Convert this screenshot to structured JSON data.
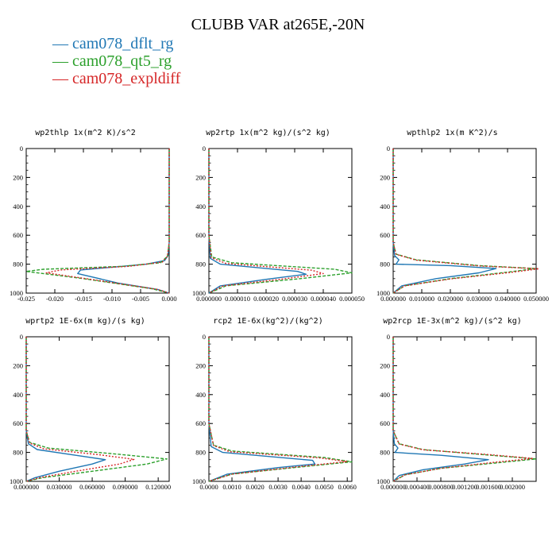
{
  "title": "CLUBB VAR at265E,-20N",
  "legend": [
    {
      "label": "— cam078_dflt_rg",
      "color": "#1f77b4"
    },
    {
      "label": "— cam078_qt5_rg",
      "color": "#2ca02c"
    },
    {
      "label": "— cam078_expldiff",
      "color": "#d62728"
    }
  ],
  "chart_data": [
    {
      "type": "line",
      "title": "wp2thlp  1x(m^2 K)/s^2",
      "xlim": [
        -0.025,
        0.0
      ],
      "ylim": [
        1000,
        0
      ],
      "xticks": [
        -0.025,
        -0.02,
        -0.015,
        -0.01,
        -0.005,
        0.0
      ],
      "xtick_labels": [
        "-0.025",
        "-0.020",
        "-0.015",
        "-0.010",
        "-0.005",
        "0.000"
      ],
      "yticks": [
        0,
        200,
        400,
        600,
        800,
        1000
      ],
      "series": [
        {
          "name": "cam078_dflt_rg",
          "color": "#1f77b4",
          "dash": "",
          "x": [
            0,
            0,
            -0.0002,
            -0.0008,
            -0.004,
            -0.0155,
            -0.016,
            -0.009,
            -0.002,
            0
          ],
          "y": [
            0,
            650,
            740,
            775,
            800,
            840,
            865,
            930,
            975,
            1000
          ]
        },
        {
          "name": "cam078_qt5_rg",
          "color": "#2ca02c",
          "dash": "4 2",
          "x": [
            0,
            0,
            -0.0003,
            -0.0015,
            -0.008,
            -0.022,
            -0.025,
            -0.015,
            -0.003,
            0
          ],
          "y": [
            0,
            650,
            745,
            790,
            815,
            835,
            850,
            900,
            970,
            1000
          ]
        },
        {
          "name": "cam078_expldiff",
          "color": "#d62728",
          "dash": "2 2",
          "x": [
            0,
            0,
            -0.0003,
            -0.0012,
            -0.007,
            -0.019,
            -0.0215,
            -0.012,
            -0.002,
            0
          ],
          "y": [
            0,
            650,
            745,
            785,
            815,
            840,
            860,
            915,
            975,
            1000
          ]
        }
      ]
    },
    {
      "type": "line",
      "title": "wp2rtp  1x(m^2 kg)/(s^2 kg)",
      "xlim": [
        0,
        5e-05
      ],
      "ylim": [
        1000,
        0
      ],
      "xticks": [
        0,
        1e-05,
        2e-05,
        3e-05,
        4e-05,
        5e-05
      ],
      "xtick_labels": [
        "0.000000",
        "0.000010",
        "0.000020",
        "0.000030",
        "0.000040",
        "0.000050"
      ],
      "yticks": [
        0,
        200,
        400,
        600,
        800,
        1000
      ],
      "series": [
        {
          "name": "cam078_dflt_rg",
          "color": "#1f77b4",
          "dash": "",
          "x": [
            0,
            0,
            5e-07,
            4e-06,
            3.1e-05,
            3.4e-05,
            2e-05,
            4e-06,
            0
          ],
          "y": [
            0,
            600,
            760,
            800,
            850,
            870,
            905,
            950,
            1000
          ]
        },
        {
          "name": "cam078_qt5_rg",
          "color": "#2ca02c",
          "dash": "4 2",
          "x": [
            0,
            0,
            1e-06,
            8e-06,
            4.4e-05,
            5e-05,
            3.2e-05,
            6e-06,
            0
          ],
          "y": [
            0,
            600,
            750,
            790,
            835,
            860,
            900,
            950,
            1000
          ]
        },
        {
          "name": "cam078_expldiff",
          "color": "#d62728",
          "dash": "2 2",
          "x": [
            0,
            0,
            8e-07,
            6e-06,
            3.6e-05,
            4e-05,
            2.6e-05,
            5e-06,
            0
          ],
          "y": [
            0,
            600,
            755,
            795,
            842,
            865,
            902,
            950,
            1000
          ]
        }
      ]
    },
    {
      "type": "line",
      "title": "wpthlp2  1x(m K^2)/s",
      "xlim": [
        0,
        0.05
      ],
      "ylim": [
        1000,
        0
      ],
      "xticks": [
        0,
        0.01,
        0.02,
        0.03,
        0.04,
        0.05
      ],
      "xtick_labels": [
        "0.000000",
        "0.010000",
        "0.020000",
        "0.030000",
        "0.040000",
        "0.050000"
      ],
      "yticks": [
        0,
        200,
        400,
        600,
        800,
        1000
      ],
      "series": [
        {
          "name": "cam078_dflt_rg",
          "color": "#1f77b4",
          "dash": "",
          "x": [
            0,
            0,
            0.0005,
            0.002,
            0.001,
            0.02,
            0.036,
            0.03,
            0.015,
            0.003,
            0
          ],
          "y": [
            0,
            650,
            740,
            770,
            800,
            810,
            830,
            860,
            900,
            950,
            1000
          ]
        },
        {
          "name": "cam078_qt5_rg",
          "color": "#2ca02c",
          "dash": "4 2",
          "x": [
            0,
            0,
            0.001,
            0.008,
            0.03,
            0.05,
            0.04,
            0.02,
            0.004,
            0
          ],
          "y": [
            0,
            650,
            730,
            770,
            810,
            830,
            855,
            900,
            950,
            1000
          ]
        },
        {
          "name": "cam078_expldiff",
          "color": "#d62728",
          "dash": "2 2",
          "x": [
            0,
            0,
            0.001,
            0.008,
            0.03,
            0.051,
            0.041,
            0.02,
            0.004,
            0
          ],
          "y": [
            0,
            650,
            732,
            772,
            812,
            832,
            857,
            902,
            950,
            1000
          ]
        }
      ]
    },
    {
      "type": "line",
      "title": "wprtp2  1E-6x(m kg)/(s kg)",
      "xlim": [
        0,
        0.13
      ],
      "ylim": [
        1000,
        0
      ],
      "xticks": [
        0,
        0.03,
        0.06,
        0.09,
        0.12
      ],
      "xtick_labels": [
        "0.000000",
        "0.030000",
        "0.060000",
        "0.090000",
        "0.120000"
      ],
      "yticks": [
        0,
        200,
        400,
        600,
        800,
        1000
      ],
      "series": [
        {
          "name": "cam078_dflt_rg",
          "color": "#1f77b4",
          "dash": "",
          "x": [
            0,
            0,
            0.002,
            0.01,
            0.045,
            0.072,
            0.06,
            0.03,
            0.008,
            0
          ],
          "y": [
            0,
            650,
            740,
            780,
            820,
            850,
            880,
            930,
            975,
            1000
          ]
        },
        {
          "name": "cam078_qt5_rg",
          "color": "#2ca02c",
          "dash": "4 2",
          "x": [
            0,
            0,
            0.003,
            0.02,
            0.08,
            0.128,
            0.11,
            0.06,
            0.015,
            0
          ],
          "y": [
            0,
            650,
            730,
            770,
            810,
            845,
            880,
            930,
            975,
            1000
          ]
        },
        {
          "name": "cam078_expldiff",
          "color": "#d62728",
          "dash": "2 2",
          "x": [
            0,
            0,
            0.003,
            0.016,
            0.065,
            0.098,
            0.085,
            0.045,
            0.012,
            0
          ],
          "y": [
            0,
            650,
            735,
            775,
            815,
            848,
            880,
            930,
            975,
            1000
          ]
        }
      ]
    },
    {
      "type": "line",
      "title": "rcp2  1E-6x(kg^2)/(kg^2)",
      "xlim": [
        0,
        0.0062
      ],
      "ylim": [
        1000,
        0
      ],
      "xticks": [
        0,
        0.001,
        0.002,
        0.003,
        0.004,
        0.005,
        0.006
      ],
      "xtick_labels": [
        "0.0000",
        "0.0010",
        "0.0020",
        "0.0030",
        "0.0040",
        "0.0050",
        "0.0060"
      ],
      "yticks": [
        0,
        200,
        400,
        600,
        800,
        1000
      ],
      "series": [
        {
          "name": "cam078_dflt_rg",
          "color": "#1f77b4",
          "dash": "",
          "x": [
            0,
            0,
            0.0001,
            0.0006,
            0.0045,
            0.0046,
            0.003,
            0.0008,
            0
          ],
          "y": [
            0,
            600,
            760,
            800,
            855,
            880,
            905,
            950,
            1000
          ]
        },
        {
          "name": "cam078_qt5_rg",
          "color": "#2ca02c",
          "dash": "4 2",
          "x": [
            0,
            0,
            0.0002,
            0.001,
            0.005,
            0.0062,
            0.004,
            0.001,
            0
          ],
          "y": [
            0,
            600,
            750,
            790,
            835,
            865,
            900,
            950,
            1000
          ]
        },
        {
          "name": "cam078_expldiff",
          "color": "#d62728",
          "dash": "2 2",
          "x": [
            0,
            0,
            0.0002,
            0.0009,
            0.0048,
            0.006,
            0.0038,
            0.001,
            0
          ],
          "y": [
            0,
            600,
            752,
            795,
            838,
            863,
            900,
            950,
            1000
          ]
        }
      ]
    },
    {
      "type": "line",
      "title": "wp2rcp  1E-3x(m^2 kg)/(s^2 kg)",
      "xlim": [
        0,
        0.0024
      ],
      "ylim": [
        1000,
        0
      ],
      "xticks": [
        0,
        0.0004,
        0.0008,
        0.0012,
        0.0016,
        0.002
      ],
      "xtick_labels": [
        "0.000000",
        "0.000400",
        "0.000800",
        "0.001200",
        "0.001600",
        "0.002000"
      ],
      "yticks": [
        0,
        200,
        400,
        600,
        800,
        1000
      ],
      "series": [
        {
          "name": "cam078_dflt_rg",
          "color": "#1f77b4",
          "dash": "",
          "x": [
            0,
            0,
            2e-05,
            8e-05,
            3e-05,
            0.0008,
            0.0016,
            0.0012,
            0.0005,
            0.0001,
            0
          ],
          "y": [
            0,
            650,
            740,
            770,
            800,
            820,
            850,
            880,
            920,
            960,
            1000
          ]
        },
        {
          "name": "cam078_qt5_rg",
          "color": "#2ca02c",
          "dash": "4 2",
          "x": [
            0,
            0,
            0.0001,
            0.0005,
            0.0015,
            0.0024,
            0.0018,
            0.0008,
            0.0002,
            0
          ],
          "y": [
            0,
            650,
            740,
            780,
            815,
            845,
            870,
            910,
            955,
            1000
          ]
        },
        {
          "name": "cam078_expldiff",
          "color": "#d62728",
          "dash": "2 2",
          "x": [
            0,
            0,
            0.0001,
            0.0005,
            0.0016,
            0.00235,
            0.0017,
            0.0008,
            0.0002,
            0
          ],
          "y": [
            0,
            650,
            742,
            782,
            815,
            842,
            868,
            910,
            955,
            1000
          ]
        }
      ]
    }
  ]
}
